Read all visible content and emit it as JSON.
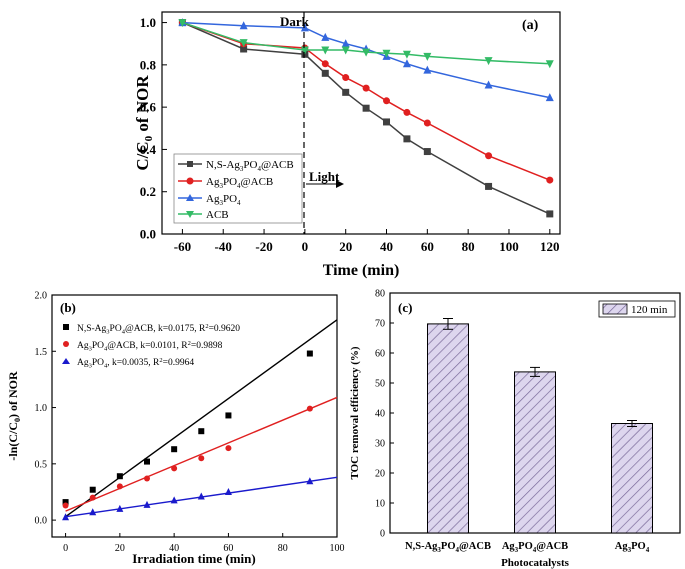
{
  "chart_data": [
    {
      "type": "line",
      "panel_label": "(a)",
      "xlabel": "Time (min)",
      "ylabel": "C/C0 of NOR",
      "xlim": [
        -70,
        125
      ],
      "ylim": [
        0.0,
        1.05
      ],
      "xticks": [
        "-60",
        "-40",
        "-20",
        "0",
        "20",
        "40",
        "60",
        "80",
        "100",
        "120"
      ],
      "xtick_values": [
        -60,
        -40,
        -20,
        0,
        20,
        40,
        60,
        80,
        100,
        120
      ],
      "yticks": [
        "0.0",
        "0.2",
        "0.4",
        "0.6",
        "0.8",
        "1.0"
      ],
      "ytick_values": [
        0.0,
        0.2,
        0.4,
        0.6,
        0.8,
        1.0
      ],
      "annotations": {
        "dark": "Dark",
        "light": "Light",
        "divider_x": 0
      },
      "legend_position": "lower-left",
      "series": [
        {
          "name": "N,S-Ag3PO4@ACB",
          "color": "#404040",
          "marker": "square",
          "x": [
            -60,
            -30,
            0,
            10,
            20,
            30,
            40,
            50,
            60,
            90,
            120
          ],
          "y": [
            1.0,
            0.875,
            0.85,
            0.76,
            0.67,
            0.595,
            0.53,
            0.45,
            0.39,
            0.225,
            0.095
          ]
        },
        {
          "name": "Ag3PO4@ACB",
          "color": "#e02020",
          "marker": "circle",
          "x": [
            -60,
            -30,
            0,
            10,
            20,
            30,
            40,
            50,
            60,
            90,
            120
          ],
          "y": [
            1.0,
            0.9,
            0.88,
            0.805,
            0.74,
            0.69,
            0.63,
            0.575,
            0.525,
            0.37,
            0.255
          ]
        },
        {
          "name": "Ag3PO4",
          "color": "#3366dd",
          "marker": "triangle-up",
          "x": [
            -60,
            -30,
            0,
            10,
            20,
            30,
            40,
            50,
            60,
            90,
            120
          ],
          "y": [
            1.0,
            0.985,
            0.975,
            0.93,
            0.9,
            0.875,
            0.84,
            0.805,
            0.775,
            0.705,
            0.645
          ]
        },
        {
          "name": "ACB",
          "color": "#33bb66",
          "marker": "triangle-down",
          "x": [
            -60,
            -30,
            0,
            10,
            20,
            30,
            40,
            50,
            60,
            90,
            120
          ],
          "y": [
            1.0,
            0.905,
            0.87,
            0.87,
            0.87,
            0.86,
            0.855,
            0.85,
            0.84,
            0.82,
            0.805
          ]
        }
      ]
    },
    {
      "type": "scatter",
      "panel_label": "(b)",
      "xlabel": "Irradiation time (min)",
      "ylabel": "-ln(C/C0) of NOR",
      "xlim": [
        -5,
        100
      ],
      "ylim": [
        -0.15,
        2.0
      ],
      "xticks": [
        "0",
        "20",
        "40",
        "60",
        "80",
        "100"
      ],
      "xtick_values": [
        0,
        20,
        40,
        60,
        80,
        100
      ],
      "yticks": [
        "0.0",
        "0.5",
        "1.0",
        "1.5",
        "2.0"
      ],
      "ytick_values": [
        0.0,
        0.5,
        1.0,
        1.5,
        2.0
      ],
      "legend_position": "top-left",
      "series": [
        {
          "name": "N,S-Ag3PO4@ACB, k=0.0175, R2=0.9620",
          "color": "#000000",
          "marker": "square",
          "x": [
            0,
            10,
            20,
            30,
            40,
            50,
            60,
            90
          ],
          "y": [
            0.16,
            0.27,
            0.39,
            0.52,
            0.63,
            0.79,
            0.93,
            1.48
          ],
          "fit": {
            "slope": 0.0175,
            "intercept": 0.03,
            "x_range": [
              0,
              100
            ]
          }
        },
        {
          "name": "Ag3PO4@ACB, k=0.0101, R2=0.9898",
          "color": "#e02020",
          "marker": "circle",
          "x": [
            0,
            10,
            20,
            30,
            40,
            50,
            60,
            90
          ],
          "y": [
            0.13,
            0.2,
            0.3,
            0.37,
            0.46,
            0.55,
            0.64,
            0.99
          ],
          "fit": {
            "slope": 0.0101,
            "intercept": 0.08,
            "x_range": [
              0,
              100
            ]
          }
        },
        {
          "name": "Ag3PO4, k=0.0035, R2=0.9964",
          "color": "#1a1acc",
          "marker": "triangle-up",
          "x": [
            0,
            10,
            20,
            30,
            40,
            50,
            60,
            90
          ],
          "y": [
            0.025,
            0.07,
            0.1,
            0.135,
            0.175,
            0.21,
            0.25,
            0.345
          ],
          "fit": {
            "slope": 0.0035,
            "intercept": 0.03,
            "x_range": [
              0,
              100
            ]
          }
        }
      ]
    },
    {
      "type": "bar",
      "panel_label": "(c)",
      "xlabel": "Photocatalysts",
      "ylabel": "TOC removal efficiency (%)",
      "ylim": [
        0,
        80
      ],
      "yticks": [
        "0",
        "10",
        "20",
        "30",
        "40",
        "50",
        "60",
        "70",
        "80"
      ],
      "ytick_values": [
        0,
        10,
        20,
        30,
        40,
        50,
        60,
        70,
        80
      ],
      "categories": [
        "N,S-Ag3PO4@ACB",
        "Ag3PO4@ACB",
        "Ag3PO4"
      ],
      "values": [
        69.7,
        53.7,
        36.5
      ],
      "errors": [
        1.8,
        1.5,
        1.0
      ],
      "legend": [
        "120 min"
      ],
      "legend_position": "top-right",
      "bar_fill": "#ddd6ee",
      "hatch_color": "#7a6a9a"
    }
  ]
}
